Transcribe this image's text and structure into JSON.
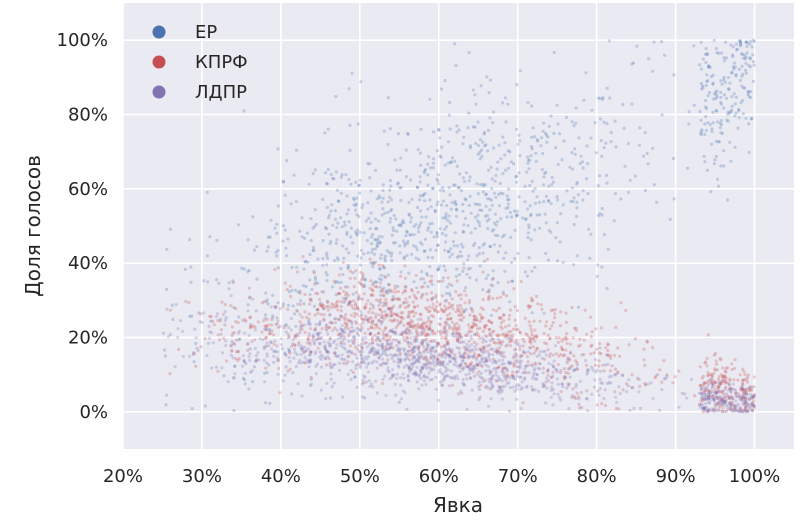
{
  "chart_data": {
    "type": "scatter",
    "title": "",
    "xlabel": "Явка",
    "ylabel": "Доля голосов",
    "xlim": [
      20,
      105
    ],
    "ylim": [
      -10,
      110
    ],
    "x_ticks": [
      20,
      30,
      40,
      50,
      60,
      70,
      80,
      90,
      100
    ],
    "x_tick_labels": [
      "20%",
      "30%",
      "40%",
      "50%",
      "60%",
      "70%",
      "80%",
      "90%",
      "100%"
    ],
    "y_ticks": [
      0,
      20,
      40,
      60,
      80,
      100
    ],
    "y_tick_labels": [
      "0%",
      "20%",
      "40%",
      "60%",
      "80%",
      "100%"
    ],
    "grid": true,
    "legend_position": "top-left",
    "series": [
      {
        "name": "ЕР",
        "color": "#4c72b0",
        "density_trend": {
          "x": [
            30,
            40,
            50,
            60,
            70,
            80,
            90,
            100
          ],
          "y": [
            28,
            38,
            45,
            52,
            58,
            66,
            78,
            92
          ],
          "spread": [
            16,
            16,
            15,
            15,
            14,
            14,
            13,
            8
          ]
        }
      },
      {
        "name": "КПРФ",
        "color": "#c44e52",
        "density_trend": {
          "x": [
            30,
            40,
            50,
            60,
            70,
            80,
            90,
            100
          ],
          "y": [
            22,
            24,
            26,
            24,
            20,
            15,
            10,
            4
          ],
          "spread": [
            6,
            6,
            6,
            6,
            6,
            6,
            5,
            4
          ]
        }
      },
      {
        "name": "ЛДПР",
        "color": "#8172b2",
        "density_trend": {
          "x": [
            30,
            40,
            50,
            60,
            70,
            80,
            90,
            100
          ],
          "y": [
            19,
            18,
            16,
            14,
            11,
            8,
            5,
            2
          ],
          "spread": [
            5,
            5,
            5,
            4,
            4,
            4,
            3,
            2
          ]
        }
      }
    ]
  }
}
